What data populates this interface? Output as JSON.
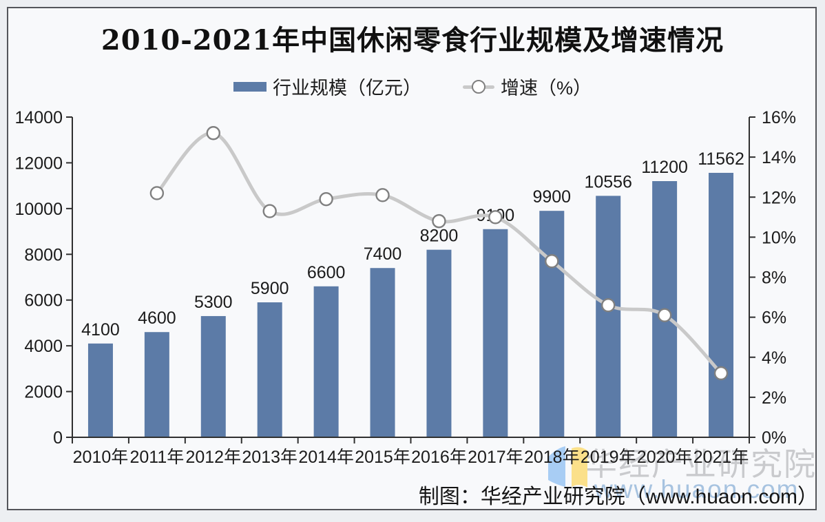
{
  "title": "2010-2021年中国休闲零食行业规模及增速情况",
  "legend": {
    "bar_label": "行业规模（亿元）",
    "line_label": "增速（%）"
  },
  "watermark": {
    "line1": "华经产业研究院",
    "line2": "www.huaon.com"
  },
  "footer": "制图：华经产业研究院（www.huaon.com）",
  "colors": {
    "bar": "#5c7ba7",
    "line": "#c9c9c9",
    "marker_fill": "#ffffff",
    "marker_stroke": "#808080",
    "axis": "#2f2f2f",
    "watermark_gray": "#c9cacd",
    "watermark_blue": "#a7c3e0",
    "logo_blue": "#a8cdf4",
    "logo_yellow": "#fbe08a"
  },
  "chart_data": {
    "type": "bar+line",
    "title": "2010-2021年中国休闲零食行业规模及增速情况",
    "categories": [
      "2010年",
      "2011年",
      "2012年",
      "2013年",
      "2014年",
      "2015年",
      "2016年",
      "2017年",
      "2018年",
      "2019年",
      "2020年",
      "2021年"
    ],
    "series": [
      {
        "name": "行业规模（亿元）",
        "type": "bar",
        "yaxis": "left",
        "color": "#5c7ba7",
        "values": [
          4100,
          4600,
          5300,
          5900,
          6600,
          7400,
          8200,
          9100,
          9900,
          10556,
          11200,
          11562
        ],
        "labels": [
          "4100",
          "4600",
          "5300",
          "5900",
          "6600",
          "7400",
          "8200",
          "9100",
          "9900",
          "10556",
          "11200",
          "11562"
        ]
      },
      {
        "name": "增速（%）",
        "type": "line",
        "yaxis": "right",
        "color": "#c9c9c9",
        "marker": "open-circle",
        "values": [
          null,
          12.2,
          15.2,
          11.3,
          11.9,
          12.1,
          10.8,
          11.0,
          8.8,
          6.6,
          6.1,
          3.2
        ]
      }
    ],
    "left_axis": {
      "min": 0,
      "max": 14000,
      "step": 2000,
      "tick_labels": [
        "0",
        "2000",
        "4000",
        "6000",
        "8000",
        "10000",
        "12000",
        "14000"
      ]
    },
    "right_axis": {
      "min": 0,
      "max": 16,
      "step": 2,
      "tick_labels": [
        "0%",
        "2%",
        "4%",
        "6%",
        "8%",
        "10%",
        "12%",
        "14%",
        "16%"
      ]
    },
    "grid": false,
    "legend_position": "top",
    "bar_value_labels": true
  }
}
